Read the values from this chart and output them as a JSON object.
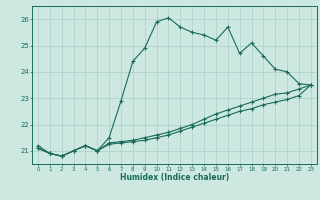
{
  "xlabel": "Humidex (Indice chaleur)",
  "bg_color": "#cce8e0",
  "grid_color": "#aacfc8",
  "line_color": "#1a6b5a",
  "xlim": [
    -0.5,
    23.5
  ],
  "ylim": [
    20.5,
    26.5
  ],
  "yticks": [
    21,
    22,
    23,
    24,
    25,
    26
  ],
  "xticks": [
    0,
    1,
    2,
    3,
    4,
    5,
    6,
    7,
    8,
    9,
    10,
    11,
    12,
    13,
    14,
    15,
    16,
    17,
    18,
    19,
    20,
    21,
    22,
    23
  ],
  "series1": [
    21.2,
    20.9,
    20.8,
    21.0,
    21.2,
    21.0,
    21.5,
    22.9,
    24.4,
    24.9,
    25.9,
    26.05,
    25.7,
    25.5,
    25.4,
    25.2,
    25.7,
    24.7,
    25.1,
    24.6,
    24.1,
    24.0,
    23.55,
    23.5
  ],
  "series2": [
    21.1,
    20.9,
    20.8,
    21.0,
    21.2,
    21.0,
    21.3,
    21.35,
    21.4,
    21.5,
    21.6,
    21.7,
    21.85,
    22.0,
    22.2,
    22.4,
    22.55,
    22.7,
    22.85,
    23.0,
    23.15,
    23.2,
    23.35,
    23.5
  ],
  "series3": [
    21.1,
    20.9,
    20.8,
    21.0,
    21.2,
    21.0,
    21.25,
    21.3,
    21.35,
    21.4,
    21.5,
    21.6,
    21.75,
    21.9,
    22.05,
    22.2,
    22.35,
    22.5,
    22.6,
    22.75,
    22.85,
    22.95,
    23.1,
    23.5
  ]
}
